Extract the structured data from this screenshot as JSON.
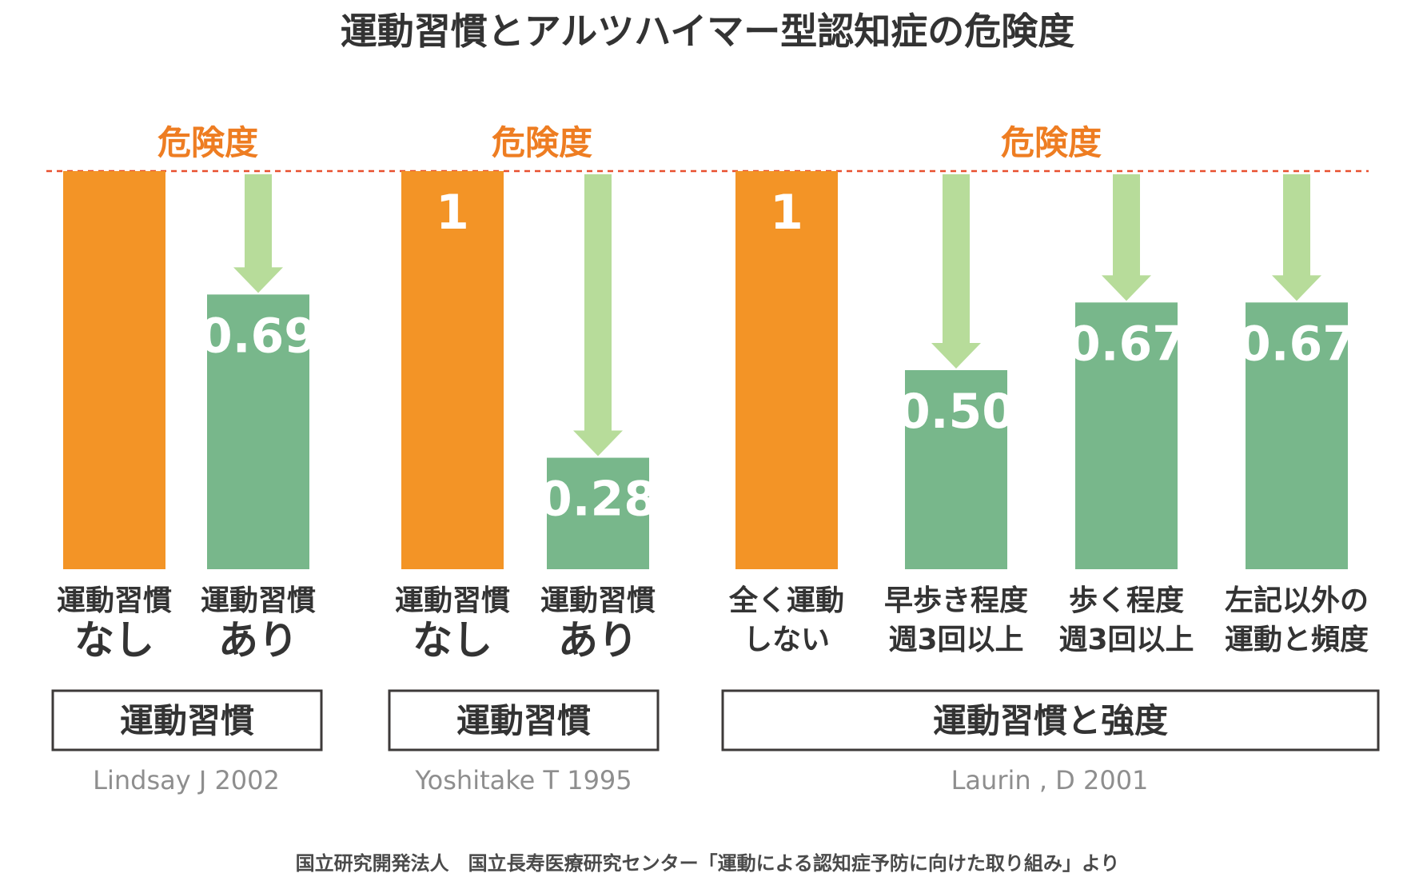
{
  "title": "運動習慣とアルツハイマー型認知症の危険度",
  "footnote": "国立研究開発法人　国立長寿医療研究センター「運動による認知症予防に向けた取り組み」より",
  "colors": {
    "baseline_bar": "#f39426",
    "reduced_bar": "#78b78b",
    "arrow": "#b7dc9a",
    "risk_text": "#ee7d22",
    "dashed_line": "#e8502f"
  },
  "chart_data": [
    {
      "type": "bar",
      "risk_label": "危険度",
      "group_label": "運動習慣",
      "source": "Lindsay J 2002",
      "ylim": [
        0,
        1
      ],
      "bars": [
        {
          "category": [
            "運動習慣",
            "なし"
          ],
          "value": 1,
          "label": "",
          "kind": "baseline"
        },
        {
          "category": [
            "運動習慣",
            "あり"
          ],
          "value": 0.69,
          "label": "0.69",
          "kind": "reduced"
        }
      ]
    },
    {
      "type": "bar",
      "risk_label": "危険度",
      "group_label": "運動習慣",
      "source": "Yoshitake T 1995",
      "ylim": [
        0,
        1
      ],
      "bars": [
        {
          "category": [
            "運動習慣",
            "なし"
          ],
          "value": 1,
          "label": "1",
          "kind": "baseline"
        },
        {
          "category": [
            "運動習慣",
            "あり"
          ],
          "value": 0.28,
          "label": "0.28",
          "kind": "reduced"
        }
      ]
    },
    {
      "type": "bar",
      "risk_label": "危険度",
      "group_label": "運動習慣と強度",
      "source": "Laurin , D 2001",
      "ylim": [
        0,
        1
      ],
      "bars": [
        {
          "category": [
            "全く運動",
            "しない"
          ],
          "value": 1,
          "label": "1",
          "kind": "baseline"
        },
        {
          "category": [
            "早歩き程度",
            "週3回以上"
          ],
          "value": 0.5,
          "label": "0.50",
          "kind": "reduced"
        },
        {
          "category": [
            "歩く程度",
            "週3回以上"
          ],
          "value": 0.67,
          "label": "0.67",
          "kind": "reduced"
        },
        {
          "category": [
            "左記以外の",
            "運動と頻度"
          ],
          "value": 0.67,
          "label": "0.67",
          "kind": "reduced"
        }
      ]
    }
  ]
}
